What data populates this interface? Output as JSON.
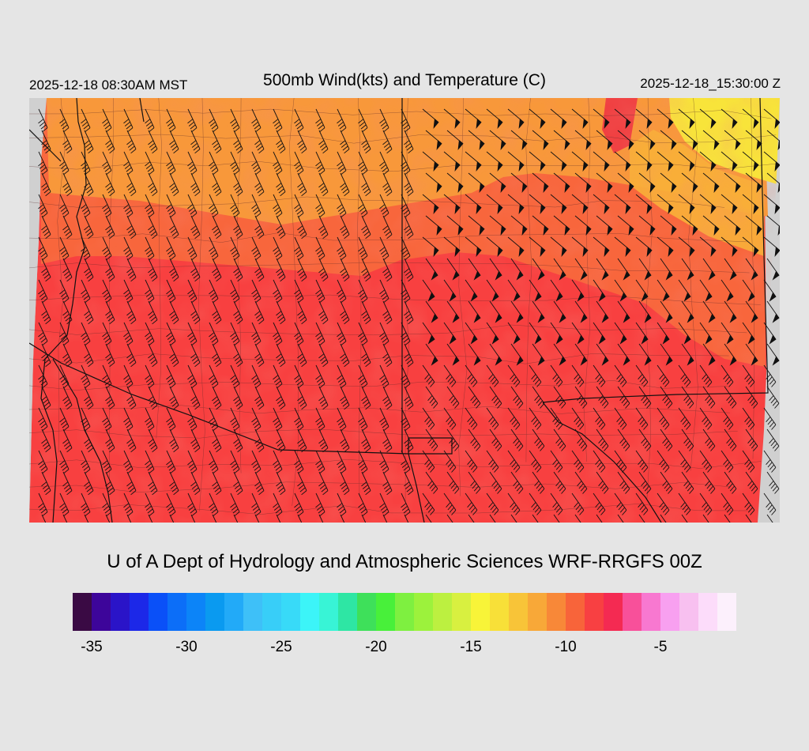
{
  "header": {
    "valid_time_local": "2025-12-18 08:30AM MST",
    "title": "500mb Wind(kts) and Temperature (C)",
    "valid_time_utc": "2025-12-18_15:30:00 Z"
  },
  "footer": {
    "credit": "U of A Dept of Hydrology and Atmospheric Sciences WRF-RRGFS 00Z"
  },
  "colorbar": {
    "min": -36,
    "max": -1,
    "colors": [
      "#3a0a44",
      "#3d059a",
      "#2a14c8",
      "#1c28e8",
      "#0a50f8",
      "#0c6ef8",
      "#0c84f8",
      "#0a9af0",
      "#22aaf8",
      "#3ec0f8",
      "#38cef8",
      "#38daf8",
      "#3cf4f8",
      "#38f4d6",
      "#2ee6a4",
      "#3ee05a",
      "#48f03a",
      "#7ef040",
      "#9cf23c",
      "#bcf040",
      "#d8f040",
      "#f8f438",
      "#f8e038",
      "#f8c438",
      "#f8a838",
      "#f88838",
      "#f8643a",
      "#f84042",
      "#f42a52",
      "#f8509a",
      "#f878d0",
      "#f8a0f0",
      "#f8c0f0",
      "#fcdcfa",
      "#fcf0fc"
    ],
    "tick_labels": [
      {
        "value": -35,
        "label": "-35"
      },
      {
        "value": -30,
        "label": "-30"
      },
      {
        "value": -25,
        "label": "-25"
      },
      {
        "value": -20,
        "label": "-20"
      },
      {
        "value": -15,
        "label": "-15"
      },
      {
        "value": -10,
        "label": "-10"
      },
      {
        "value": -5,
        "label": "-5"
      }
    ]
  },
  "map": {
    "temperature_bands": [
      {
        "name": "cold-north",
        "color": "#f8a038"
      },
      {
        "name": "mid",
        "color": "#f87a3c"
      },
      {
        "name": "warm-south",
        "color": "#f84040"
      },
      {
        "name": "coldest-northeast",
        "color": "#f8e838"
      }
    ],
    "border_color": "#111111",
    "county_color": "#4a3030",
    "barb_color": "#111111",
    "missing_data_color": "#d0d0d0"
  }
}
